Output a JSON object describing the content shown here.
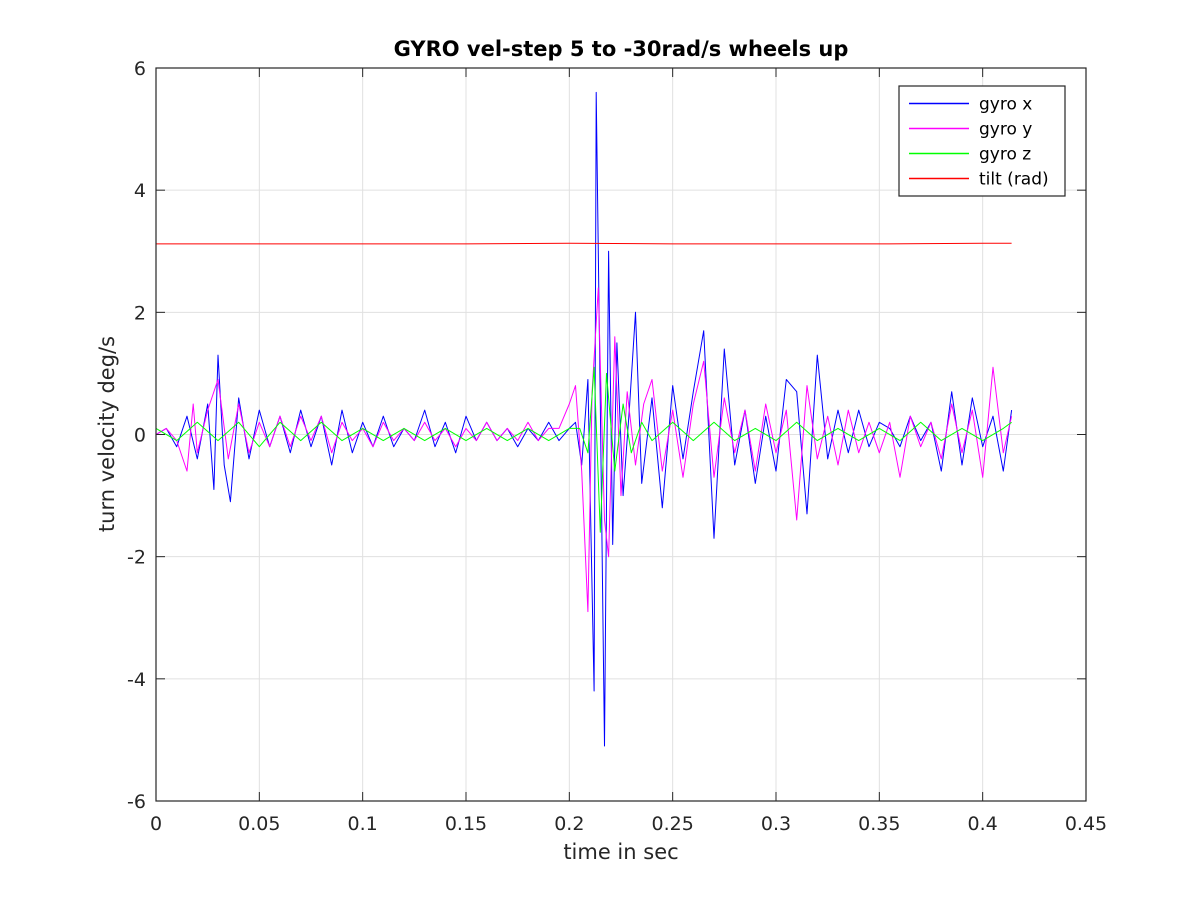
{
  "chart_data": {
    "type": "line",
    "title": "GYRO vel-step 5 to -30rad/s wheels up",
    "xlabel": "time in sec",
    "ylabel": "turn velocity deg/s",
    "xlim": [
      0,
      0.45
    ],
    "ylim": [
      -6,
      6
    ],
    "x_ticks": [
      0,
      0.05,
      0.1,
      0.15,
      0.2,
      0.25,
      0.3,
      0.35,
      0.4,
      0.45
    ],
    "x_tick_labels": [
      "0",
      "0.05",
      "0.1",
      "0.15",
      "0.2",
      "0.25",
      "0.3",
      "0.35",
      "0.4",
      "0.45"
    ],
    "y_ticks": [
      -6,
      -4,
      -2,
      0,
      2,
      4,
      6
    ],
    "y_tick_labels": [
      "-6",
      "-4",
      "-2",
      "0",
      "2",
      "4",
      "6"
    ],
    "grid": true,
    "legend_position": "top-right",
    "series": [
      {
        "name": "gyro x",
        "color": "#0000ff",
        "x": [
          0,
          0.005,
          0.01,
          0.015,
          0.02,
          0.025,
          0.028,
          0.03,
          0.033,
          0.036,
          0.04,
          0.045,
          0.05,
          0.055,
          0.06,
          0.065,
          0.07,
          0.075,
          0.08,
          0.085,
          0.09,
          0.095,
          0.1,
          0.105,
          0.11,
          0.115,
          0.12,
          0.125,
          0.13,
          0.135,
          0.14,
          0.145,
          0.15,
          0.155,
          0.16,
          0.165,
          0.17,
          0.175,
          0.18,
          0.185,
          0.19,
          0.195,
          0.2,
          0.203,
          0.206,
          0.209,
          0.212,
          0.213,
          0.215,
          0.217,
          0.219,
          0.221,
          0.223,
          0.226,
          0.229,
          0.232,
          0.235,
          0.24,
          0.245,
          0.25,
          0.255,
          0.26,
          0.265,
          0.27,
          0.275,
          0.28,
          0.285,
          0.29,
          0.295,
          0.3,
          0.305,
          0.31,
          0.315,
          0.32,
          0.325,
          0.33,
          0.335,
          0.34,
          0.345,
          0.35,
          0.355,
          0.36,
          0.365,
          0.37,
          0.375,
          0.38,
          0.385,
          0.39,
          0.395,
          0.4,
          0.405,
          0.41,
          0.414
        ],
        "y": [
          0,
          0.1,
          -0.2,
          0.3,
          -0.4,
          0.5,
          -0.9,
          1.3,
          -0.5,
          -1.1,
          0.6,
          -0.4,
          0.4,
          -0.2,
          0.3,
          -0.3,
          0.4,
          -0.2,
          0.3,
          -0.5,
          0.4,
          -0.3,
          0.2,
          -0.2,
          0.3,
          -0.2,
          0.1,
          -0.1,
          0.4,
          -0.2,
          0.2,
          -0.3,
          0.3,
          -0.1,
          0.2,
          -0.1,
          0.1,
          -0.2,
          0.1,
          -0.1,
          0.2,
          -0.1,
          0.1,
          0.2,
          -0.5,
          0.9,
          -4.2,
          5.6,
          0.5,
          -5.1,
          3.0,
          -1.8,
          1.5,
          -1.0,
          0.4,
          2.0,
          -0.8,
          0.6,
          -1.2,
          0.8,
          -0.4,
          0.7,
          1.7,
          -1.7,
          1.4,
          -0.5,
          0.4,
          -0.8,
          0.3,
          -0.6,
          0.9,
          0.7,
          -1.3,
          1.3,
          -0.4,
          0.4,
          -0.3,
          0.4,
          -0.2,
          0.2,
          0.1,
          -0.2,
          0.3,
          -0.1,
          0.2,
          -0.6,
          0.7,
          -0.5,
          0.6,
          -0.2,
          0.3,
          -0.6,
          0.4
        ]
      },
      {
        "name": "gyro y",
        "color": "#ff00ff",
        "x": [
          0,
          0.005,
          0.01,
          0.015,
          0.018,
          0.02,
          0.025,
          0.03,
          0.035,
          0.04,
          0.045,
          0.05,
          0.055,
          0.06,
          0.065,
          0.07,
          0.075,
          0.08,
          0.085,
          0.09,
          0.095,
          0.1,
          0.105,
          0.11,
          0.115,
          0.12,
          0.125,
          0.13,
          0.135,
          0.14,
          0.145,
          0.15,
          0.155,
          0.16,
          0.165,
          0.17,
          0.175,
          0.18,
          0.185,
          0.19,
          0.195,
          0.2,
          0.203,
          0.206,
          0.209,
          0.211,
          0.214,
          0.217,
          0.219,
          0.222,
          0.225,
          0.228,
          0.232,
          0.236,
          0.24,
          0.245,
          0.25,
          0.255,
          0.26,
          0.265,
          0.27,
          0.275,
          0.28,
          0.285,
          0.29,
          0.295,
          0.3,
          0.305,
          0.31,
          0.315,
          0.32,
          0.325,
          0.33,
          0.335,
          0.34,
          0.345,
          0.35,
          0.355,
          0.36,
          0.365,
          0.37,
          0.375,
          0.38,
          0.385,
          0.39,
          0.395,
          0.4,
          0.405,
          0.41,
          0.414
        ],
        "y": [
          0,
          0.1,
          -0.1,
          -0.6,
          0.5,
          -0.3,
          0.4,
          0.9,
          -0.4,
          0.5,
          -0.3,
          0.2,
          -0.2,
          0.3,
          -0.2,
          0.3,
          -0.1,
          0.3,
          -0.3,
          0.2,
          -0.1,
          0.1,
          -0.2,
          0.2,
          -0.1,
          0.1,
          -0.1,
          0.2,
          -0.1,
          0.1,
          -0.2,
          0.1,
          -0.1,
          0.2,
          -0.1,
          0.1,
          -0.1,
          0.2,
          -0.1,
          0.1,
          0.1,
          0.5,
          0.8,
          -0.6,
          -2.9,
          0.7,
          2.4,
          -1.4,
          -2.0,
          1.6,
          -1.0,
          0.7,
          -0.5,
          0.5,
          0.9,
          -0.6,
          0.4,
          -0.7,
          0.5,
          1.2,
          -0.7,
          0.6,
          -0.3,
          0.4,
          -0.6,
          0.5,
          -0.3,
          0.4,
          -1.4,
          0.8,
          -0.4,
          0.3,
          -0.5,
          0.4,
          -0.3,
          0.2,
          -0.3,
          0.2,
          -0.7,
          0.3,
          -0.2,
          0.2,
          -0.4,
          0.5,
          -0.3,
          0.4,
          -0.7,
          1.1,
          -0.3,
          0.3
        ]
      },
      {
        "name": "gyro z",
        "color": "#00ff00",
        "x": [
          0,
          0.01,
          0.02,
          0.03,
          0.04,
          0.05,
          0.06,
          0.07,
          0.08,
          0.09,
          0.1,
          0.11,
          0.12,
          0.13,
          0.14,
          0.15,
          0.16,
          0.17,
          0.18,
          0.19,
          0.2,
          0.205,
          0.209,
          0.212,
          0.215,
          0.218,
          0.222,
          0.226,
          0.23,
          0.235,
          0.24,
          0.25,
          0.26,
          0.27,
          0.28,
          0.29,
          0.3,
          0.31,
          0.32,
          0.33,
          0.34,
          0.35,
          0.36,
          0.37,
          0.38,
          0.39,
          0.4,
          0.41,
          0.414
        ],
        "y": [
          0.1,
          -0.1,
          0.2,
          -0.1,
          0.2,
          -0.2,
          0.2,
          -0.1,
          0.2,
          -0.1,
          0.1,
          -0.1,
          0.1,
          -0.1,
          0.1,
          -0.1,
          0.1,
          -0.1,
          0.1,
          -0.1,
          0.1,
          0.1,
          -0.3,
          1.1,
          -1.6,
          1.0,
          -0.6,
          0.5,
          -0.3,
          0.2,
          -0.1,
          0.2,
          -0.1,
          0.2,
          -0.1,
          0.1,
          -0.1,
          0.2,
          -0.1,
          0.1,
          -0.1,
          0.1,
          -0.1,
          0.2,
          -0.1,
          0.1,
          -0.1,
          0.1,
          0.2
        ]
      },
      {
        "name": "tilt (rad)",
        "color": "#ff0000",
        "x": [
          0,
          0.05,
          0.1,
          0.15,
          0.2,
          0.25,
          0.3,
          0.35,
          0.4,
          0.414
        ],
        "y": [
          3.12,
          3.12,
          3.12,
          3.12,
          3.13,
          3.12,
          3.12,
          3.12,
          3.13,
          3.13
        ]
      }
    ]
  }
}
